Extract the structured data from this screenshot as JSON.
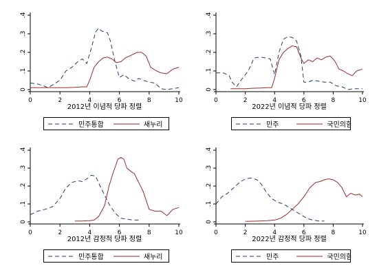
{
  "colors": {
    "series_a": "#1f3b6e",
    "series_b": "#a02828",
    "axis": "#000000",
    "grid": "#cccccc"
  },
  "chart_data": [
    {
      "type": "line",
      "title": "",
      "xlabel": "2012년 이념적 당파 정렬",
      "ylabel": "",
      "xlim": [
        0,
        10
      ],
      "ylim": [
        0,
        0.4
      ],
      "xticks": [
        0,
        2,
        4,
        6,
        8,
        10
      ],
      "yticks": [
        0,
        0.1,
        0.2,
        0.3,
        0.4
      ],
      "ytick_labels": [
        "0",
        ".1",
        ".2",
        ".3",
        ".4"
      ],
      "legend": "bottom",
      "series": [
        {
          "name": "민주통합",
          "style": "dash",
          "x": [
            0,
            0.5,
            0.9,
            1.2,
            1.6,
            2.0,
            2.4,
            2.8,
            3.2,
            3.5,
            3.8,
            4.1,
            4.4,
            4.6,
            4.8,
            5.0,
            5.2,
            5.4,
            5.7,
            6.0,
            6.3,
            6.6,
            7.0,
            7.3,
            7.6,
            8.0,
            8.4,
            8.8,
            9.2,
            9.6,
            10
          ],
          "y": [
            0.035,
            0.03,
            0.02,
            0.01,
            0.03,
            0.05,
            0.1,
            0.12,
            0.15,
            0.165,
            0.14,
            0.22,
            0.31,
            0.33,
            0.315,
            0.31,
            0.305,
            0.26,
            0.15,
            0.065,
            0.08,
            0.06,
            0.045,
            0.06,
            0.05,
            0.04,
            0.035,
            0.005,
            0.0,
            0.005,
            0.01
          ]
        },
        {
          "name": "새누리",
          "style": "solid",
          "x": [
            0,
            0.5,
            1.0,
            1.5,
            2.0,
            2.5,
            3.0,
            3.5,
            3.8,
            4.0,
            4.3,
            4.6,
            4.9,
            5.2,
            5.5,
            5.8,
            6.1,
            6.4,
            6.8,
            7.2,
            7.5,
            7.8,
            8.1,
            8.5,
            8.8,
            9.2,
            9.6,
            10
          ],
          "y": [
            0.01,
            0.01,
            0.01,
            0.01,
            0.01,
            0.01,
            0.012,
            0.015,
            0.015,
            0.05,
            0.12,
            0.15,
            0.17,
            0.175,
            0.165,
            0.145,
            0.15,
            0.17,
            0.185,
            0.2,
            0.2,
            0.18,
            0.12,
            0.1,
            0.09,
            0.085,
            0.11,
            0.12
          ]
        }
      ]
    },
    {
      "type": "line",
      "title": "",
      "xlabel": "2022년 이념적 당파 정렬",
      "ylabel": "",
      "xlim": [
        0,
        10
      ],
      "ylim": [
        0,
        0.4
      ],
      "xticks": [
        0,
        2,
        4,
        6,
        8,
        10
      ],
      "yticks": [
        0,
        0.1,
        0.2,
        0.3,
        0.4
      ],
      "ytick_labels": [
        "0",
        ".1",
        ".2",
        ".3",
        ".4"
      ],
      "legend": "bottom",
      "series": [
        {
          "name": "민주",
          "style": "dash",
          "x": [
            0,
            0.5,
            0.9,
            1.1,
            1.4,
            1.8,
            2.2,
            2.6,
            3.0,
            3.4,
            3.7,
            4.0,
            4.3,
            4.6,
            4.9,
            5.2,
            5.5,
            5.8,
            6.0,
            6.3,
            6.6,
            7.0,
            7.4,
            7.8,
            8.2,
            8.6,
            9.0,
            9.4,
            9.8,
            10
          ],
          "y": [
            0.09,
            0.09,
            0.075,
            0.04,
            0.015,
            0.06,
            0.1,
            0.17,
            0.175,
            0.17,
            0.165,
            0.08,
            0.2,
            0.27,
            0.285,
            0.28,
            0.26,
            0.18,
            0.04,
            0.04,
            0.05,
            0.045,
            0.04,
            0.04,
            0.02,
            0.015,
            0.0,
            0.005,
            0.005,
            0.005
          ]
        },
        {
          "name": "국민의힘",
          "style": "solid",
          "x": [
            1.0,
            1.5,
            2.0,
            2.5,
            3.0,
            3.5,
            3.8,
            4.0,
            4.3,
            4.6,
            4.9,
            5.2,
            5.5,
            5.8,
            6.0,
            6.3,
            6.6,
            6.9,
            7.2,
            7.5,
            7.8,
            8.1,
            8.4,
            8.7,
            9.0,
            9.3,
            9.6,
            10
          ],
          "y": [
            0.005,
            0.005,
            0.005,
            0.007,
            0.008,
            0.01,
            0.01,
            0.06,
            0.16,
            0.2,
            0.22,
            0.235,
            0.23,
            0.17,
            0.14,
            0.16,
            0.15,
            0.17,
            0.16,
            0.175,
            0.18,
            0.155,
            0.11,
            0.1,
            0.085,
            0.075,
            0.1,
            0.11
          ]
        }
      ]
    },
    {
      "type": "line",
      "title": "",
      "xlabel": "2012년 감정적 당파 정렬",
      "ylabel": "",
      "xlim": [
        0,
        10
      ],
      "ylim": [
        0,
        0.4
      ],
      "xticks": [
        0,
        2,
        4,
        6,
        8,
        10
      ],
      "yticks": [
        0,
        0.1,
        0.2,
        0.3,
        0.4
      ],
      "ytick_labels": [
        "0",
        ".1",
        ".2",
        ".3",
        ".4"
      ],
      "legend": "bottom",
      "series": [
        {
          "name": "민주통합",
          "style": "dash",
          "x": [
            0,
            0.5,
            1.0,
            1.5,
            2.0,
            2.4,
            2.8,
            3.2,
            3.5,
            3.8,
            4.1,
            4.4,
            4.7,
            5.0,
            5.3,
            5.7,
            6.1,
            6.5,
            6.9,
            7.3
          ],
          "y": [
            0.04,
            0.06,
            0.07,
            0.085,
            0.13,
            0.19,
            0.22,
            0.23,
            0.225,
            0.24,
            0.26,
            0.255,
            0.2,
            0.15,
            0.1,
            0.05,
            0.02,
            0.015,
            0.01,
            0.01
          ]
        },
        {
          "name": "새누리",
          "style": "solid",
          "x": [
            3.0,
            3.5,
            4.0,
            4.3,
            4.6,
            5.0,
            5.3,
            5.6,
            5.9,
            6.1,
            6.3,
            6.5,
            6.8,
            7.0,
            7.3,
            7.6,
            8.0,
            8.4,
            8.8,
            9.2,
            9.6,
            10
          ],
          "y": [
            0.005,
            0.005,
            0.007,
            0.01,
            0.03,
            0.09,
            0.2,
            0.28,
            0.35,
            0.36,
            0.35,
            0.3,
            0.28,
            0.27,
            0.22,
            0.17,
            0.07,
            0.06,
            0.06,
            0.035,
            0.07,
            0.08
          ]
        }
      ]
    },
    {
      "type": "line",
      "title": "",
      "xlabel": "2022년 감정적 당파 정렬",
      "ylabel": "",
      "xlim": [
        0,
        10
      ],
      "ylim": [
        0,
        0.4
      ],
      "xticks": [
        0,
        2,
        4,
        6,
        8,
        10
      ],
      "yticks": [
        0,
        0.1,
        0.2,
        0.3,
        0.4
      ],
      "ytick_labels": [
        "0",
        ".1",
        ".2",
        ".3",
        ".4"
      ],
      "legend": "bottom",
      "series": [
        {
          "name": "민주",
          "style": "dash",
          "x": [
            0,
            0.4,
            0.8,
            1.2,
            1.6,
            2.0,
            2.4,
            2.8,
            3.1,
            3.4,
            3.8,
            4.2,
            4.6,
            5.0,
            5.4,
            5.8,
            6.2,
            6.6,
            7.0,
            7.4
          ],
          "y": [
            0.1,
            0.14,
            0.16,
            0.19,
            0.22,
            0.24,
            0.245,
            0.235,
            0.21,
            0.17,
            0.13,
            0.11,
            0.1,
            0.08,
            0.06,
            0.04,
            0.02,
            0.01,
            0.005,
            0.005
          ]
        },
        {
          "name": "국민의힘",
          "style": "solid",
          "x": [
            2.0,
            2.5,
            3.0,
            3.5,
            4.0,
            4.4,
            4.8,
            5.2,
            5.6,
            6.0,
            6.4,
            6.8,
            7.1,
            7.4,
            7.7,
            8.0,
            8.3,
            8.6,
            8.9,
            9.2,
            9.5,
            9.8,
            10
          ],
          "y": [
            0.003,
            0.004,
            0.005,
            0.007,
            0.01,
            0.02,
            0.04,
            0.07,
            0.1,
            0.14,
            0.19,
            0.22,
            0.225,
            0.235,
            0.24,
            0.235,
            0.22,
            0.19,
            0.14,
            0.16,
            0.15,
            0.155,
            0.14
          ]
        }
      ]
    }
  ]
}
